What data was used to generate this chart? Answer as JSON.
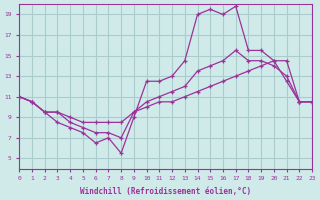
{
  "xlabel": "Windchill (Refroidissement éolien,°C)",
  "bg_color": "#d0eaea",
  "grid_color": "#aacccc",
  "line_color": "#993399",
  "xlim": [
    0,
    23
  ],
  "ylim": [
    4,
    20
  ],
  "yticks": [
    5,
    7,
    9,
    11,
    13,
    15,
    17,
    19
  ],
  "xticks": [
    0,
    1,
    2,
    3,
    4,
    5,
    6,
    7,
    8,
    9,
    10,
    11,
    12,
    13,
    14,
    15,
    16,
    17,
    18,
    19,
    20,
    21,
    22,
    23
  ],
  "line1_x": [
    0,
    1,
    2,
    3,
    4,
    5,
    6,
    7,
    8,
    9,
    10,
    11,
    12,
    13,
    14,
    15,
    16,
    17,
    18,
    19,
    20,
    21,
    22,
    23
  ],
  "line1_y": [
    11.0,
    10.5,
    9.5,
    8.5,
    8.0,
    7.5,
    6.5,
    7.0,
    5.5,
    9.0,
    12.5,
    12.5,
    13.0,
    14.5,
    19.0,
    19.5,
    19.0,
    19.8,
    15.5,
    15.5,
    14.5,
    12.5,
    10.5,
    10.5
  ],
  "line2_x": [
    0,
    1,
    2,
    3,
    4,
    5,
    6,
    7,
    8,
    9,
    10,
    11,
    12,
    13,
    14,
    15,
    16,
    17,
    18,
    19,
    20,
    21,
    22,
    23
  ],
  "line2_y": [
    11.0,
    10.5,
    9.5,
    9.5,
    8.5,
    8.0,
    7.5,
    7.5,
    7.0,
    9.5,
    10.5,
    11.0,
    11.5,
    12.0,
    13.5,
    14.0,
    14.5,
    15.5,
    14.5,
    14.5,
    14.0,
    13.0,
    10.5,
    10.5
  ],
  "line3_x": [
    0,
    1,
    2,
    3,
    4,
    5,
    6,
    7,
    8,
    9,
    10,
    11,
    12,
    13,
    14,
    15,
    16,
    17,
    18,
    19,
    20,
    21,
    22,
    23
  ],
  "line3_y": [
    11.0,
    10.5,
    9.5,
    9.5,
    9.0,
    8.5,
    8.5,
    8.5,
    8.5,
    9.5,
    10.0,
    10.5,
    10.5,
    11.0,
    11.5,
    12.0,
    12.5,
    13.0,
    13.5,
    14.0,
    14.5,
    14.5,
    10.5,
    10.5
  ]
}
